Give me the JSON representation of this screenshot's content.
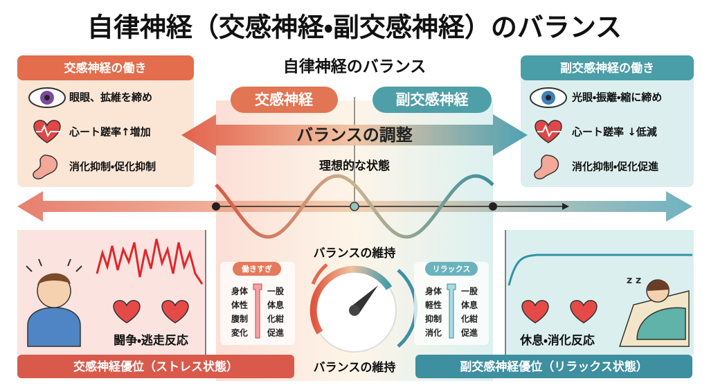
{
  "title": "自律神経（交感神経・副交感神経）のバランス",
  "center_heading": "自律神経のバランス",
  "sympathetic_panel": {
    "title": "交感神経の働き",
    "items": [
      "眼眼、拡維を締め",
      "心ート蹉率↑増加",
      "消化抑制・促化抑制"
    ]
  },
  "parasympathetic_panel": {
    "title": "副交感神経の働き",
    "items": [
      "光眼・振離・縮に締め",
      "心ート蹉率 ↓低減",
      "消化抑制・促化促進"
    ]
  },
  "tabs": [
    "交感神経",
    "副交感神経"
  ],
  "balance_arrow": "バランスの調整",
  "ideal_state": "理想的な状態",
  "balance_keep": [
    "バランスの維持",
    "バランスの維持"
  ],
  "overwork_box": {
    "label": "働きすぎ",
    "left": [
      "身体",
      "体性",
      "腹制",
      "変化"
    ],
    "right": [
      "一股",
      "体息",
      "化紺",
      "促進"
    ]
  },
  "relax_box": {
    "label": "リラックス",
    "left": [
      "身体",
      "軽性",
      "抑制",
      "消化"
    ],
    "right": [
      "一股",
      "体息",
      "化紺",
      "促進"
    ]
  },
  "responses": [
    "闘争・逃走反応",
    "休息・消化反応"
  ],
  "banners": [
    "交感神経優位（ストレス状態）",
    "副交感神経優位（リラックス状態）"
  ]
}
